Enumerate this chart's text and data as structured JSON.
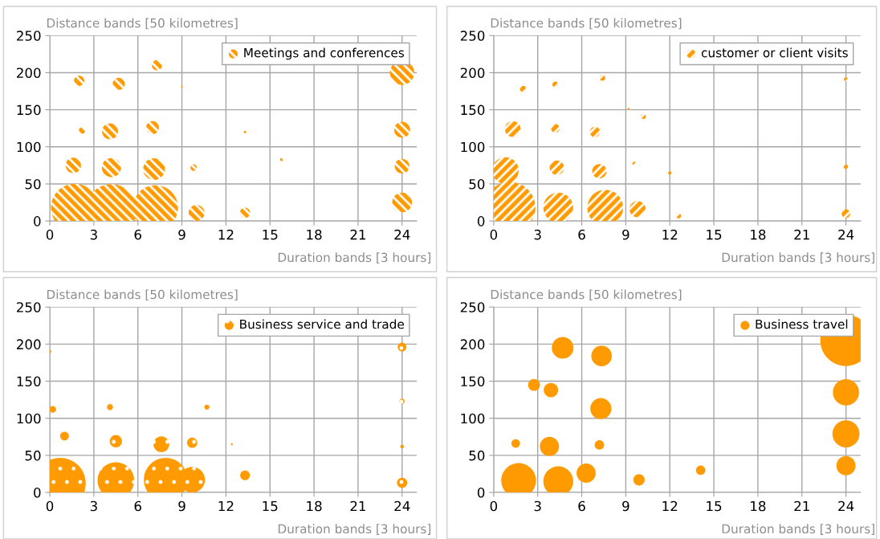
{
  "chart_data": [
    {
      "type": "bubble",
      "xlabel": "Duration bands [3 hours]",
      "ylabel": "Distance bands [50 kilometres]",
      "xlim": [
        0,
        25
      ],
      "ylim": [
        0,
        250
      ],
      "xticks": [
        0,
        3,
        6,
        9,
        12,
        15,
        18,
        21,
        24
      ],
      "yticks": [
        0,
        50,
        100,
        150,
        200,
        250
      ],
      "grid": true,
      "legend": "top right",
      "series": [
        {
          "name": "Meetings and conferences",
          "color": "#ff9b00",
          "x": [
            1.7,
            4.2,
            7.2,
            10.0,
            13.3,
            24,
            24,
            24,
            24,
            1.6,
            4.2,
            7.1,
            9.8,
            15.8,
            2.2,
            4.1,
            7.0,
            13.3,
            2.0,
            4.7,
            7.3,
            9.0
          ],
          "values": [
            18,
            15,
            18,
            11,
            11,
            25,
            74,
            123,
            200,
            75,
            72,
            70,
            72,
            83,
            122,
            121,
            126,
            120,
            189,
            185,
            210,
            181
          ],
          "sizes": [
            0.86,
            1,
            0.77,
            0.097,
            0.04,
            0.149,
            0.082,
            0.097,
            0.226,
            0.09,
            0.141,
            0.18,
            0.016,
            0.004,
            0.016,
            0.097,
            0.0625,
            0.0025,
            0.04,
            0.056,
            0.04,
            0.0013
          ]
        }
      ]
    },
    {
      "type": "bubble",
      "xlabel": "Duration bands [3 hours]",
      "ylabel": "Distance bands [50 kilometres]",
      "xlim": [
        0,
        25
      ],
      "ylim": [
        0,
        250
      ],
      "xticks": [
        0,
        3,
        6,
        9,
        12,
        15,
        18,
        21,
        24
      ],
      "yticks": [
        0,
        50,
        100,
        150,
        200,
        250
      ],
      "grid": true,
      "legend": "top right",
      "series": [
        {
          "name": "customer or client visits",
          "color": "#ff9b00",
          "x": [
            1.1,
            0.8,
            4.4,
            7.6,
            9.8,
            12.6,
            24,
            24,
            24,
            9.5,
            12.0,
            4.3,
            7.2,
            1.3,
            4.2,
            6.9,
            9.2,
            10.2,
            2.0,
            4.2,
            7.4
          ],
          "values": [
            18,
            68,
            18,
            18,
            16,
            7,
            10,
            73,
            191,
            79,
            65,
            72,
            67,
            124,
            125,
            120,
            151,
            141,
            178,
            184,
            193
          ],
          "sizes": [
            1,
            0.27,
            0.34,
            0.49,
            0.1,
            0.01,
            0.028,
            0.008,
            0.006,
            0.006,
            0.0046,
            0.079,
            0.079,
            0.096,
            0.028,
            0.041,
            0.002,
            0.01,
            0.015,
            0.013,
            0.013
          ]
        }
      ]
    },
    {
      "type": "bubble",
      "xlabel": "Duration bands [3 hours]",
      "ylabel": "Distance bands [50 kilometres]",
      "xlim": [
        0,
        25
      ],
      "ylim": [
        0,
        250
      ],
      "xticks": [
        0,
        3,
        6,
        9,
        12,
        15,
        18,
        21,
        24
      ],
      "yticks": [
        0,
        50,
        100,
        150,
        200,
        250
      ],
      "grid": true,
      "legend": "top right",
      "series": [
        {
          "name": "Business service and trade",
          "color": "#ff9b00",
          "x": [
            0.7,
            4.5,
            7.9,
            9.7,
            13.3,
            24,
            24,
            24,
            24,
            12.4,
            10.7,
            9.7,
            7.6,
            4.5,
            1.0,
            0.2,
            4.1,
            0
          ],
          "values": [
            12,
            16,
            17,
            17,
            23,
            13,
            62,
            123,
            196,
            65,
            115,
            67,
            65,
            69,
            76,
            112,
            115,
            190
          ],
          "sizes": [
            1,
            0.51,
            0.73,
            0.25,
            0.036,
            0.04,
            0.005,
            0.01,
            0.029,
            0.0016,
            0.01,
            0.04,
            0.095,
            0.058,
            0.029,
            0.017,
            0.014,
            0.0036
          ]
        }
      ]
    },
    {
      "type": "bubble",
      "xlabel": "Duration bands [3 hours]",
      "ylabel": "Distance bands [50 kilometres]",
      "xlim": [
        0,
        25
      ],
      "ylim": [
        0,
        250
      ],
      "xticks": [
        0,
        3,
        6,
        9,
        12,
        15,
        18,
        21,
        24
      ],
      "yticks": [
        0,
        50,
        100,
        150,
        200,
        250
      ],
      "grid": true,
      "legend": "top right",
      "series": [
        {
          "name": "Business travel",
          "color": "#ff9b00",
          "x": [
            24,
            24,
            24,
            24,
            14.1,
            9.9,
            6.3,
            4.4,
            1.7,
            1.5,
            3.8,
            7.2,
            7.3,
            2.75,
            3.9,
            4.7,
            7.35
          ],
          "values": [
            205,
            135,
            79,
            36,
            30,
            17,
            26,
            15,
            16,
            66,
            62,
            64,
            113,
            145,
            138,
            195,
            184
          ],
          "sizes": [
            1,
            0.26,
            0.28,
            0.14,
            0.034,
            0.049,
            0.14,
            0.34,
            0.46,
            0.028,
            0.14,
            0.034,
            0.17,
            0.054,
            0.079,
            0.18,
            0.16
          ]
        }
      ]
    }
  ]
}
